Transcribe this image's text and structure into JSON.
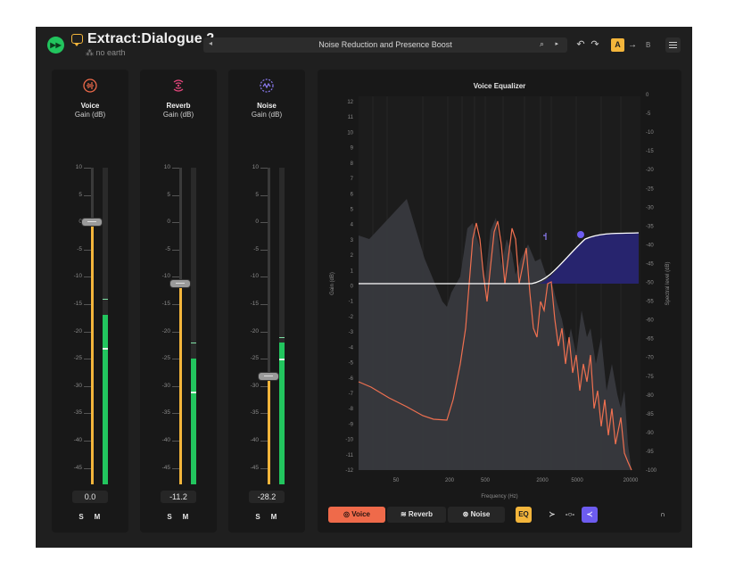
{
  "app": {
    "title": "Extract:Dialogue 2",
    "subtitle": "⁂ no earth",
    "preset": "Noise Reduction and Presence Boost",
    "logo_icon": "play-forward-icon",
    "ab": {
      "a": "A",
      "arrow": "→",
      "b": "B"
    }
  },
  "strips": [
    {
      "name": "Voice",
      "unit": "Gain (dB)",
      "value": "0.0",
      "gain_db": 0.0,
      "meter_db": -17,
      "peak_db": -14,
      "rms_db": -23,
      "icon": "waveform-icon",
      "icon_color": "#ef6a4a",
      "solo": "S",
      "mute": "M"
    },
    {
      "name": "Reverb",
      "unit": "Gain (dB)",
      "value": "-11.2",
      "gain_db": -11.2,
      "meter_db": -25,
      "peak_db": -22,
      "rms_db": -31,
      "icon": "reverb-waves-icon",
      "icon_color": "#e0457a",
      "solo": "S",
      "mute": "M"
    },
    {
      "name": "Noise",
      "unit": "Gain (dB)",
      "value": "-28.2",
      "gain_db": -28.2,
      "meter_db": -22,
      "peak_db": -21,
      "rms_db": -25,
      "icon": "noise-icon",
      "icon_color": "#8b7bf0",
      "solo": "S",
      "mute": "M"
    }
  ],
  "fader_ticks": [
    "10",
    "5",
    "0",
    "-5",
    "-10",
    "-15",
    "-20",
    "-25",
    "-30",
    "-35",
    "-40",
    "-45"
  ],
  "eq": {
    "title": "Voice Equalizer",
    "gain_label": "Gain (dB)",
    "spectral_label": "Spectral level (dB)",
    "x_label": "Frequency (Hz)",
    "left_ticks": [
      "12",
      "11",
      "10",
      "9",
      "8",
      "7",
      "6",
      "5",
      "4",
      "3",
      "2",
      "1",
      "0",
      "-1",
      "-2",
      "-3",
      "-4",
      "-5",
      "-6",
      "-7",
      "-8",
      "-9",
      "-10",
      "-11",
      "-12"
    ],
    "right_ticks": [
      "0",
      "-5",
      "-10",
      "-15",
      "-20",
      "-25",
      "-30",
      "-35",
      "-40",
      "-45",
      "-50",
      "-55",
      "-60",
      "-65",
      "-70",
      "-75",
      "-80",
      "-85",
      "-90",
      "-95",
      "-100"
    ],
    "freq_ticks": [
      "50",
      "200",
      "500",
      "2000",
      "5000",
      "20000"
    ]
  },
  "bottom": {
    "voice": "Voice",
    "reverb": "Reverb",
    "noise": "Noise",
    "eq": "EQ",
    "colors": {
      "voice": "#ef6a4a",
      "eq": "#f3b53b",
      "active_shape": "#6d5cf0"
    }
  }
}
